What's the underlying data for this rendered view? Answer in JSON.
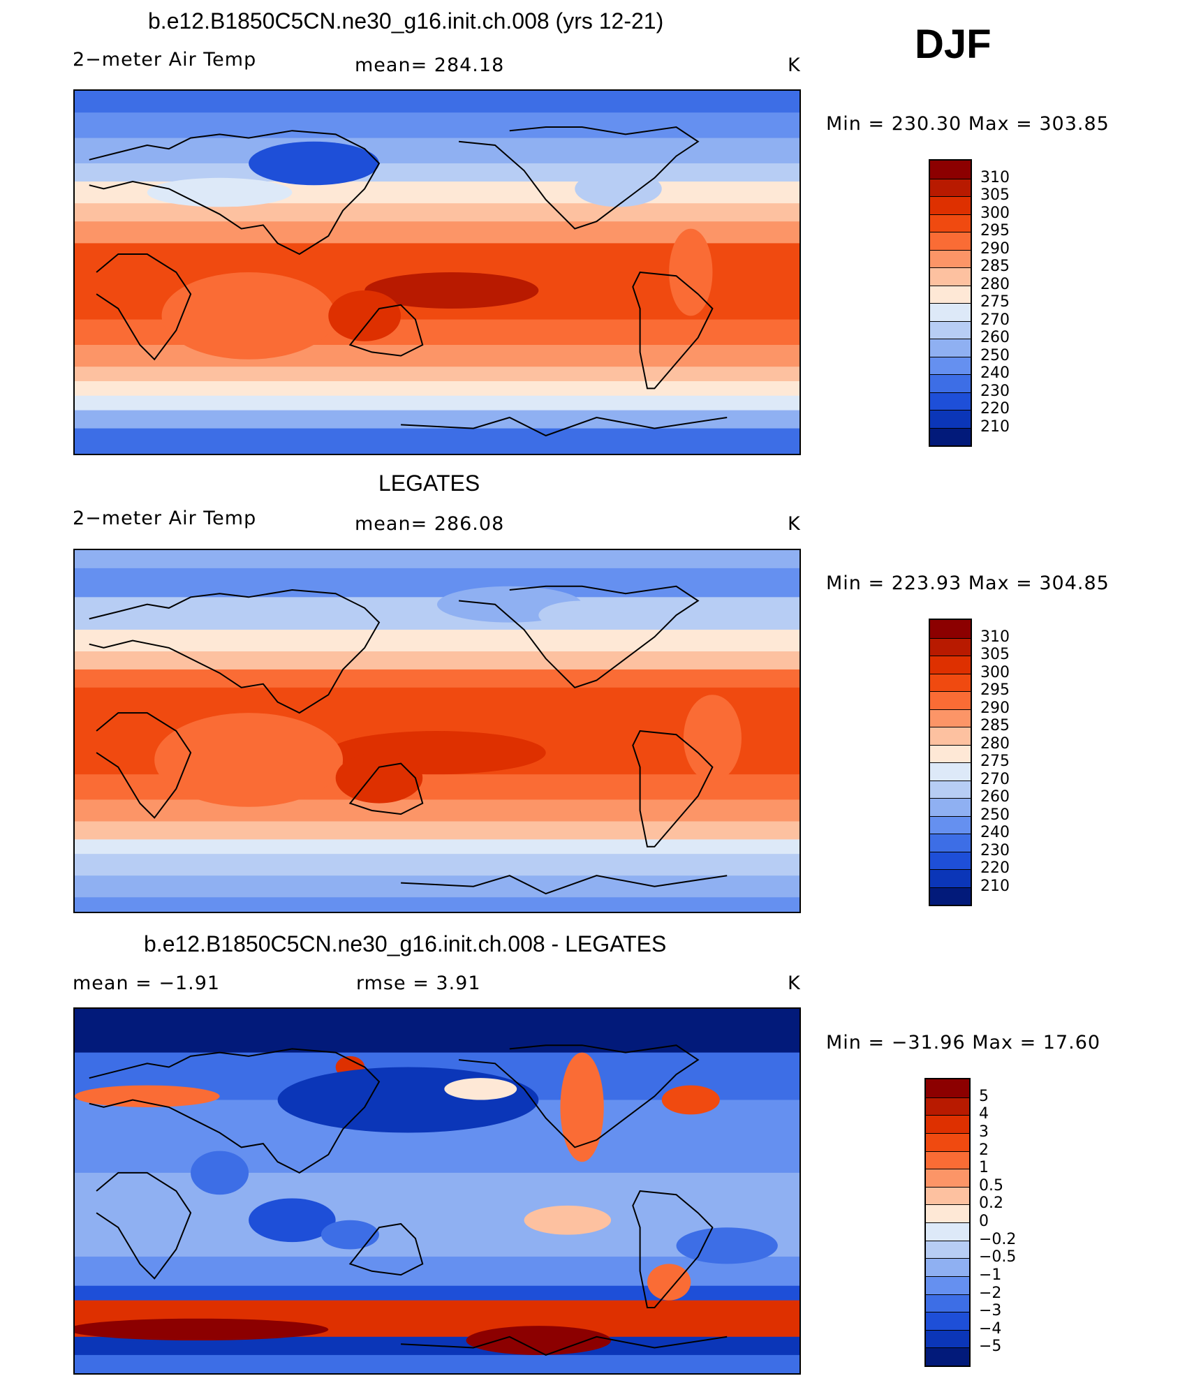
{
  "season": "DJF",
  "panels": [
    {
      "title": "b.e12.B1850C5CN.ne30_g16.init.ch.008 (yrs 12-21)",
      "variable": "2−meter Air Temp",
      "stat": "mean=  284.18",
      "units": "K",
      "range": "Min  =  230.30  Max  =  303.85",
      "colorbar": {
        "labels": [
          "310",
          "305",
          "300",
          "295",
          "290",
          "285",
          "280",
          "275",
          "270",
          "260",
          "250",
          "240",
          "230",
          "220",
          "210"
        ],
        "colors": [
          "#8c0000",
          "#b81a00",
          "#de3000",
          "#f04a10",
          "#fa6c35",
          "#fc9567",
          "#fdc1a0",
          "#fee8d6",
          "#dde9f8",
          "#b7cdf4",
          "#8fb0f2",
          "#6590f0",
          "#3d6ee6",
          "#1e4fd8",
          "#0b36b8",
          "#021a7a"
        ]
      },
      "palette": "temp"
    },
    {
      "title": "LEGATES",
      "variable": "2−meter Air Temp",
      "stat": "mean=  286.08",
      "units": "K",
      "range": "Min  =  223.93  Max  =  304.85",
      "colorbar": {
        "labels": [
          "310",
          "305",
          "300",
          "295",
          "290",
          "285",
          "280",
          "275",
          "270",
          "260",
          "250",
          "240",
          "230",
          "220",
          "210"
        ],
        "colors": [
          "#8c0000",
          "#b81a00",
          "#de3000",
          "#f04a10",
          "#fa6c35",
          "#fc9567",
          "#fdc1a0",
          "#fee8d6",
          "#dde9f8",
          "#b7cdf4",
          "#8fb0f2",
          "#6590f0",
          "#3d6ee6",
          "#1e4fd8",
          "#0b36b8",
          "#021a7a"
        ]
      },
      "palette": "temp2"
    },
    {
      "title": "b.e12.B1850C5CN.ne30_g16.init.ch.008 - LEGATES",
      "variable": "mean  =    −1.91",
      "stat": "rmse  =     3.91",
      "units": "K",
      "range": "Min  =  −31.96  Max  =    17.60",
      "colorbar": {
        "labels": [
          "5",
          "4",
          "3",
          "2",
          "1",
          "0.5",
          "0.2",
          "0",
          "−0.2",
          "−0.5",
          "−1",
          "−2",
          "−3",
          "−4",
          "−5"
        ],
        "colors": [
          "#8c0000",
          "#b81a00",
          "#de3000",
          "#f04a10",
          "#fa6c35",
          "#fc9567",
          "#fdc1a0",
          "#fee8d6",
          "#dde9f8",
          "#b7cdf4",
          "#8fb0f2",
          "#6590f0",
          "#3d6ee6",
          "#1e4fd8",
          "#0b36b8",
          "#021a7a"
        ]
      },
      "palette": "diff"
    }
  ]
}
